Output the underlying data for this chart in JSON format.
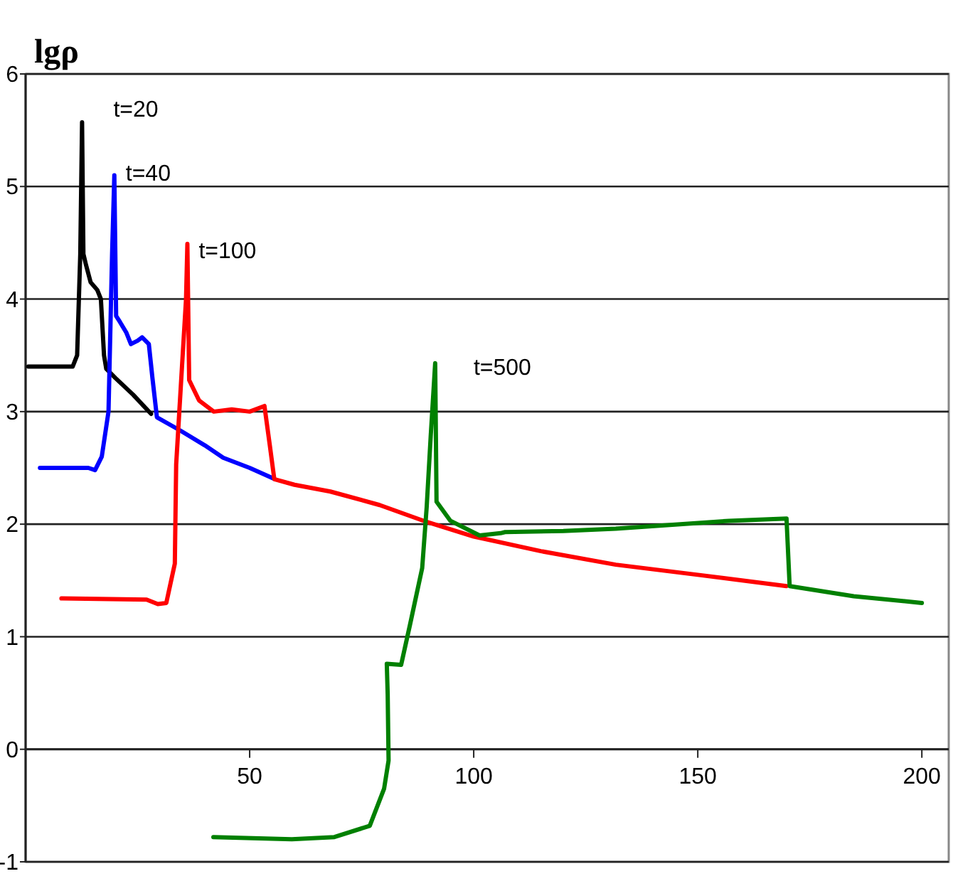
{
  "chart_data": {
    "type": "line",
    "ylabel": "lgρ",
    "xlim": [
      0,
      206
    ],
    "xticks": [
      50,
      100,
      150,
      200
    ],
    "ylim": [
      -1,
      6
    ],
    "yticks": [
      -1,
      0,
      1,
      2,
      3,
      4,
      5,
      6
    ],
    "grid": "y",
    "marker": "none",
    "line_style": "solid",
    "series": [
      {
        "name": "t=20",
        "color": "#000000",
        "x": [
          0.6,
          10.5,
          11.5,
          12.2,
          12.6,
          12.9,
          13.5,
          14.5,
          16,
          16.8,
          17.5,
          18,
          20,
          24,
          28
        ],
        "values": [
          3.4,
          3.4,
          3.5,
          4.4,
          5.57,
          4.4,
          4.3,
          4.15,
          4.08,
          4.0,
          3.5,
          3.38,
          3.3,
          3.15,
          2.98
        ]
      },
      {
        "name": "t=40",
        "color": "#0000ff",
        "x": [
          3.2,
          14,
          15.5,
          17,
          18.5,
          19.3,
          19.8,
          20.2,
          21,
          22.5,
          23.5,
          25,
          26,
          27.5,
          28.3,
          29.3,
          34.6,
          40,
          44.1,
          50,
          55.6
        ],
        "values": [
          2.5,
          2.5,
          2.48,
          2.6,
          3.0,
          4.4,
          5.1,
          3.85,
          3.8,
          3.7,
          3.6,
          3.63,
          3.66,
          3.6,
          3.3,
          2.95,
          2.83,
          2.7,
          2.59,
          2.5,
          2.4
        ]
      },
      {
        "name": "t=100",
        "color": "#ff0000",
        "x": [
          8,
          27,
          29.5,
          31.4,
          33.3,
          33.6,
          34.9,
          35.8,
          36.1,
          36.5,
          38.7,
          42,
          46,
          50,
          53.3,
          54.5,
          55.5,
          60,
          68,
          79,
          89.5,
          100,
          115,
          131.7,
          150,
          169.8
        ],
        "values": [
          1.34,
          1.33,
          1.29,
          1.3,
          1.65,
          2.53,
          3.4,
          4.0,
          4.49,
          3.28,
          3.1,
          3.0,
          3.02,
          3.0,
          3.05,
          2.7,
          2.4,
          2.35,
          2.29,
          2.17,
          2.02,
          1.89,
          1.76,
          1.64,
          1.55,
          1.45
        ]
      },
      {
        "name": "t=500",
        "color": "#008000",
        "x": [
          41.9,
          59.4,
          68.9,
          76.8,
          80,
          81,
          80.8,
          80.6,
          83.8,
          85.8,
          88.5,
          89.5,
          90.4,
          91.4,
          91.7,
          94.8,
          101.3,
          106,
          107,
          120,
          131.7,
          157,
          169.8,
          170.5,
          184.8,
          200
        ],
        "values": [
          -0.78,
          -0.8,
          -0.78,
          -0.68,
          -0.35,
          -0.1,
          0.49,
          0.76,
          0.75,
          1.11,
          1.61,
          2.15,
          2.78,
          3.43,
          2.2,
          2.03,
          1.9,
          1.92,
          1.93,
          1.94,
          1.96,
          2.03,
          2.05,
          1.45,
          1.36,
          1.3
        ]
      }
    ]
  }
}
